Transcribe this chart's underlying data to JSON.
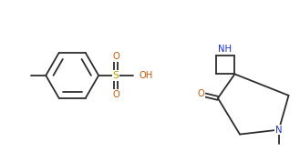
{
  "bg_color": "#ffffff",
  "bond_color": "#2d2d2d",
  "atom_color_N": "#1a2fd4",
  "atom_color_O": "#cc5500",
  "atom_color_S": "#b89a00",
  "line_width": 1.3,
  "fig_width": 3.29,
  "fig_height": 1.78,
  "dpi": 100,
  "xlim": [
    0.0,
    10.8
  ],
  "ylim": [
    0.2,
    6.0
  ],
  "fontsize": 7.2
}
